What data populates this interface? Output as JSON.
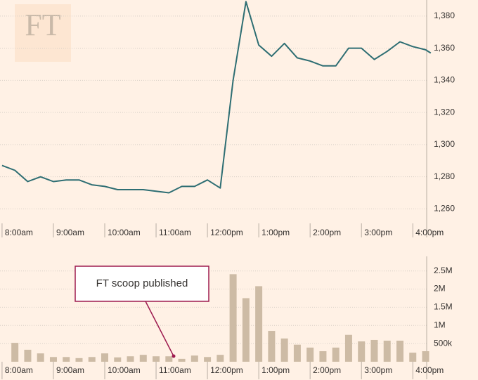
{
  "logo": "FT",
  "chart_data": [
    {
      "type": "line",
      "x": [
        8,
        8.25,
        8.5,
        8.75,
        9,
        9.25,
        9.5,
        9.75,
        10,
        10.25,
        10.5,
        10.75,
        11,
        11.25,
        11.5,
        11.75,
        12,
        12.25,
        12.5,
        12.75,
        13,
        13.25,
        13.5,
        13.75,
        14,
        14.25,
        14.5,
        14.75,
        15,
        15.25,
        15.5,
        15.75,
        16,
        16.25,
        16.35
      ],
      "series": [
        {
          "color": "#2e6e73",
          "values": [
            1287,
            1284,
            1277,
            1280,
            1277,
            1278,
            1278,
            1275,
            1274,
            1272,
            1272,
            1272,
            1271,
            1270,
            1274,
            1274,
            1278,
            1273,
            1340,
            1389,
            1362,
            1355,
            1363,
            1354,
            1352,
            1349,
            1349,
            1360,
            1360,
            1353,
            1358,
            1364,
            1361,
            1359,
            1357
          ]
        }
      ],
      "xlim": [
        7.96,
        16.38
      ],
      "xticks": [
        {
          "value": 8,
          "label": "8:00am"
        },
        {
          "value": 9,
          "label": "9:00am"
        },
        {
          "value": 10,
          "label": "10:00am"
        },
        {
          "value": 11,
          "label": "11:00am"
        },
        {
          "value": 12,
          "label": "12:00pm"
        },
        {
          "value": 13,
          "label": "1:00pm"
        },
        {
          "value": 14,
          "label": "2:00pm"
        },
        {
          "value": 15,
          "label": "3:00pm"
        },
        {
          "value": 16,
          "label": "4:00pm"
        }
      ],
      "ylim": [
        1251,
        1390
      ],
      "yticks": [
        {
          "value": 1260,
          "label": "1,260"
        },
        {
          "value": 1280,
          "label": "1,280"
        },
        {
          "value": 1300,
          "label": "1,300"
        },
        {
          "value": 1320,
          "label": "1,320"
        },
        {
          "value": 1340,
          "label": "1,340"
        },
        {
          "value": 1360,
          "label": "1,360"
        },
        {
          "value": 1380,
          "label": "1,380"
        }
      ],
      "grid": true
    },
    {
      "type": "bar",
      "x": [
        8.25,
        8.5,
        8.75,
        9,
        9.25,
        9.5,
        9.75,
        10,
        10.25,
        10.5,
        10.75,
        11,
        11.25,
        11.5,
        11.75,
        12,
        12.25,
        12.5,
        12.75,
        13,
        13.25,
        13.5,
        13.75,
        14,
        14.25,
        14.5,
        14.75,
        15,
        15.25,
        15.5,
        15.75,
        16,
        16.25
      ],
      "values": [
        520000,
        330000,
        230000,
        130000,
        130000,
        100000,
        130000,
        230000,
        120000,
        150000,
        190000,
        150000,
        150000,
        80000,
        170000,
        130000,
        190000,
        2410000,
        1750000,
        2080000,
        850000,
        640000,
        470000,
        390000,
        290000,
        390000,
        740000,
        560000,
        600000,
        580000,
        580000,
        250000,
        290000
      ],
      "color": "#cdbba5",
      "xlim": [
        7.96,
        16.38
      ],
      "xticks": [
        {
          "value": 8,
          "label": "8:00am"
        },
        {
          "value": 9,
          "label": "9:00am"
        },
        {
          "value": 10,
          "label": "10:00am"
        },
        {
          "value": 11,
          "label": "11:00am"
        },
        {
          "value": 12,
          "label": "12:00pm"
        },
        {
          "value": 13,
          "label": "1:00pm"
        },
        {
          "value": 14,
          "label": "2:00pm"
        },
        {
          "value": 15,
          "label": "3:00pm"
        },
        {
          "value": 16,
          "label": "4:00pm"
        }
      ],
      "ylim": [
        0,
        2900000
      ],
      "yticks": [
        {
          "value": 500000,
          "label": "500k"
        },
        {
          "value": 1000000,
          "label": "1M"
        },
        {
          "value": 1500000,
          "label": "1.5M"
        },
        {
          "value": 2000000,
          "label": "2M"
        },
        {
          "value": 2500000,
          "label": "2.5M"
        }
      ],
      "grid": true,
      "annotation": "FT scoop published"
    }
  ]
}
